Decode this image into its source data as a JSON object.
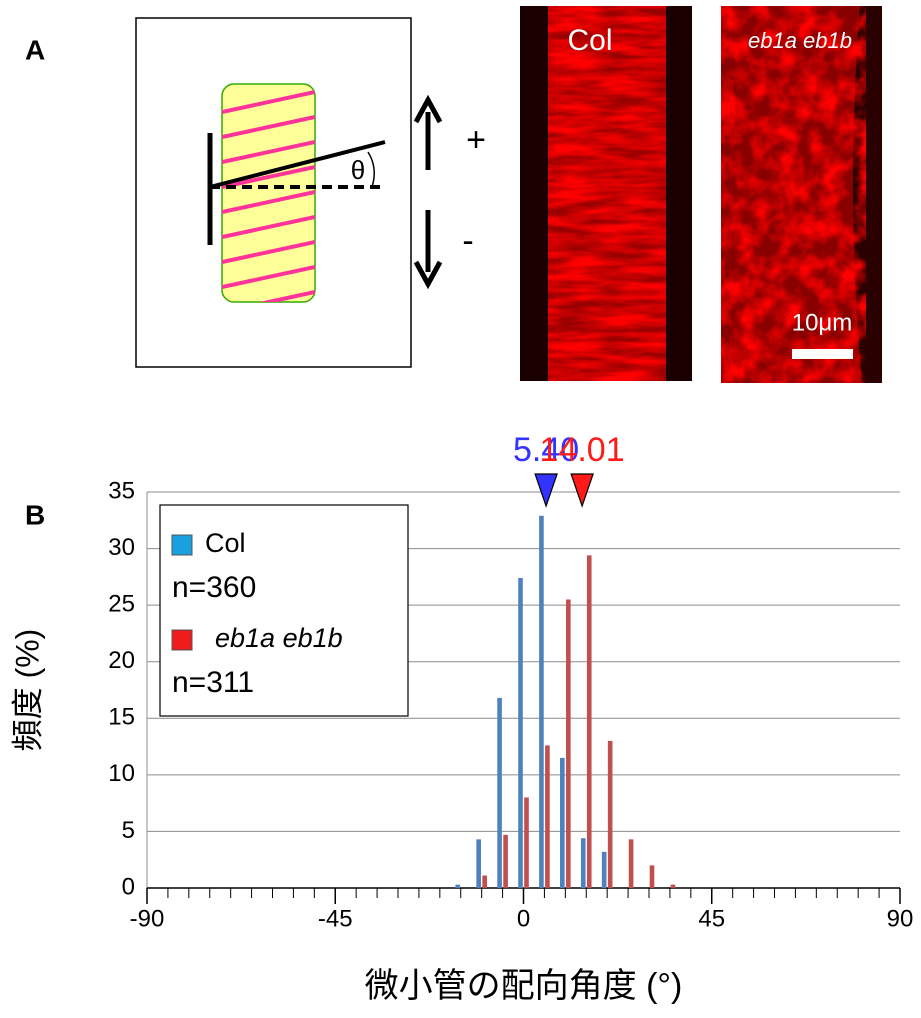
{
  "panel_labels": [
    "A",
    "B"
  ],
  "panel_a": {
    "images": [
      {
        "label": "Col"
      },
      {
        "label": "eb1a eb1b"
      }
    ],
    "scale_bar": "10μm",
    "angle": "θ",
    "plus": "+",
    "minus": "-"
  },
  "chart_data": {
    "type": "bar",
    "x": [
      -15,
      -10,
      -5,
      0,
      5,
      10,
      15,
      20,
      25,
      30,
      35
    ],
    "series": [
      {
        "name": "Col",
        "note": "n=360",
        "color": "#4f81bd",
        "values": [
          0.3,
          4.3,
          16.8,
          27.4,
          32.9,
          11.5,
          4.4,
          3.2,
          0,
          0,
          0
        ]
      },
      {
        "name": "eb1a eb1b",
        "note": "n=311",
        "color": "#c0504d",
        "values": [
          0,
          1.1,
          4.7,
          8.0,
          12.6,
          25.5,
          29.4,
          13.0,
          4.3,
          2.0,
          0.3
        ]
      }
    ],
    "xlim": [
      -90,
      90
    ],
    "xticks": [
      -90,
      -45,
      0,
      45,
      90
    ],
    "ylim": [
      0,
      35
    ],
    "yticks": [
      0,
      5,
      10,
      15,
      20,
      25,
      30,
      35
    ],
    "xlabel": "微小管の配向角度 (°)",
    "ylabel": "頻度 (%)",
    "grid": true,
    "annotations": [
      {
        "value": 5.4,
        "label": "5.40",
        "color": "#3333ff"
      },
      {
        "value": 14.01,
        "label": "14.01",
        "color": "#ff1a1a"
      }
    ]
  }
}
